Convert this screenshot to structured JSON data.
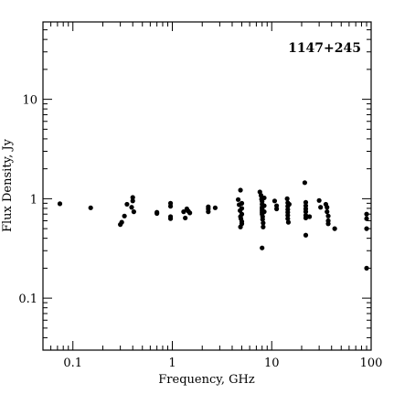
{
  "chart_data": {
    "type": "scatter",
    "title": "1147+245",
    "xlabel": "Frequency, GHz",
    "ylabel": "Flux Density, Jy",
    "xscale": "log",
    "yscale": "log",
    "xlim": [
      0.05,
      100
    ],
    "ylim": [
      0.03,
      60
    ],
    "x_ticks": [
      {
        "value": 0.1,
        "label": "0.1"
      },
      {
        "value": 1,
        "label": "1"
      },
      {
        "value": 10,
        "label": "10"
      },
      {
        "value": 100,
        "label": "100"
      }
    ],
    "y_ticks": [
      {
        "value": 0.1,
        "label": "0.1"
      },
      {
        "value": 1,
        "label": "1"
      },
      {
        "value": 10,
        "label": "10"
      }
    ],
    "grid": false,
    "legend": "none",
    "marker_color": "#000000",
    "points": [
      [
        0.074,
        0.89
      ],
      [
        0.151,
        0.81
      ],
      [
        0.3,
        0.55
      ],
      [
        0.31,
        0.58
      ],
      [
        0.33,
        0.67
      ],
      [
        0.35,
        0.88
      ],
      [
        0.39,
        0.82
      ],
      [
        0.4,
        0.95
      ],
      [
        0.4,
        1.03
      ],
      [
        0.41,
        0.74
      ],
      [
        0.7,
        0.71
      ],
      [
        0.7,
        0.73
      ],
      [
        0.96,
        0.84
      ],
      [
        0.96,
        0.9
      ],
      [
        0.96,
        0.63
      ],
      [
        0.96,
        0.66
      ],
      [
        1.3,
        0.74
      ],
      [
        1.35,
        0.64
      ],
      [
        1.4,
        0.79
      ],
      [
        1.45,
        0.75
      ],
      [
        1.5,
        0.72
      ],
      [
        2.3,
        0.83
      ],
      [
        2.3,
        0.79
      ],
      [
        2.3,
        0.74
      ],
      [
        2.7,
        0.81
      ],
      [
        4.6,
        0.98
      ],
      [
        4.7,
        0.87
      ],
      [
        4.8,
        0.76
      ],
      [
        4.85,
        1.22
      ],
      [
        4.85,
        0.66
      ],
      [
        4.85,
        0.52
      ],
      [
        4.9,
        0.63
      ],
      [
        5.0,
        0.9
      ],
      [
        5.0,
        0.8
      ],
      [
        5.0,
        0.7
      ],
      [
        5.0,
        0.59
      ],
      [
        5.0,
        0.56
      ],
      [
        7.6,
        1.17
      ],
      [
        7.8,
        1.08
      ],
      [
        7.9,
        0.99
      ],
      [
        8.0,
        0.94
      ],
      [
        8.0,
        0.88
      ],
      [
        8.0,
        0.82
      ],
      [
        8.0,
        0.79
      ],
      [
        8.0,
        0.76
      ],
      [
        8.0,
        0.73
      ],
      [
        8.0,
        0.7
      ],
      [
        8.1,
        0.66
      ],
      [
        8.1,
        0.62
      ],
      [
        8.2,
        0.57
      ],
      [
        8.2,
        0.52
      ],
      [
        8.4,
        1.02
      ],
      [
        8.4,
        0.85
      ],
      [
        8.4,
        0.74
      ],
      [
        8.0,
        0.32
      ],
      [
        10.7,
        0.95
      ],
      [
        11.2,
        0.85
      ],
      [
        11.2,
        0.79
      ],
      [
        14.3,
        1.0
      ],
      [
        14.5,
        0.91
      ],
      [
        14.5,
        0.84
      ],
      [
        14.5,
        0.78
      ],
      [
        14.5,
        0.73
      ],
      [
        14.5,
        0.68
      ],
      [
        14.5,
        0.63
      ],
      [
        14.7,
        0.58
      ],
      [
        15.0,
        0.88
      ],
      [
        21.5,
        1.45
      ],
      [
        22.0,
        0.92
      ],
      [
        22.0,
        0.85
      ],
      [
        22.0,
        0.79
      ],
      [
        22.0,
        0.74
      ],
      [
        22.0,
        0.68
      ],
      [
        22.0,
        0.64
      ],
      [
        22.0,
        0.43
      ],
      [
        24.0,
        0.66
      ],
      [
        30.0,
        0.96
      ],
      [
        31.0,
        0.82
      ],
      [
        35.0,
        0.88
      ],
      [
        36.0,
        0.82
      ],
      [
        36.0,
        0.74
      ],
      [
        37.0,
        0.67
      ],
      [
        37.0,
        0.6
      ],
      [
        37.0,
        0.56
      ],
      [
        43.0,
        0.5
      ],
      [
        90.0,
        0.7
      ],
      [
        90.0,
        0.63
      ],
      [
        90.0,
        0.5
      ],
      [
        90.0,
        0.2
      ]
    ]
  }
}
